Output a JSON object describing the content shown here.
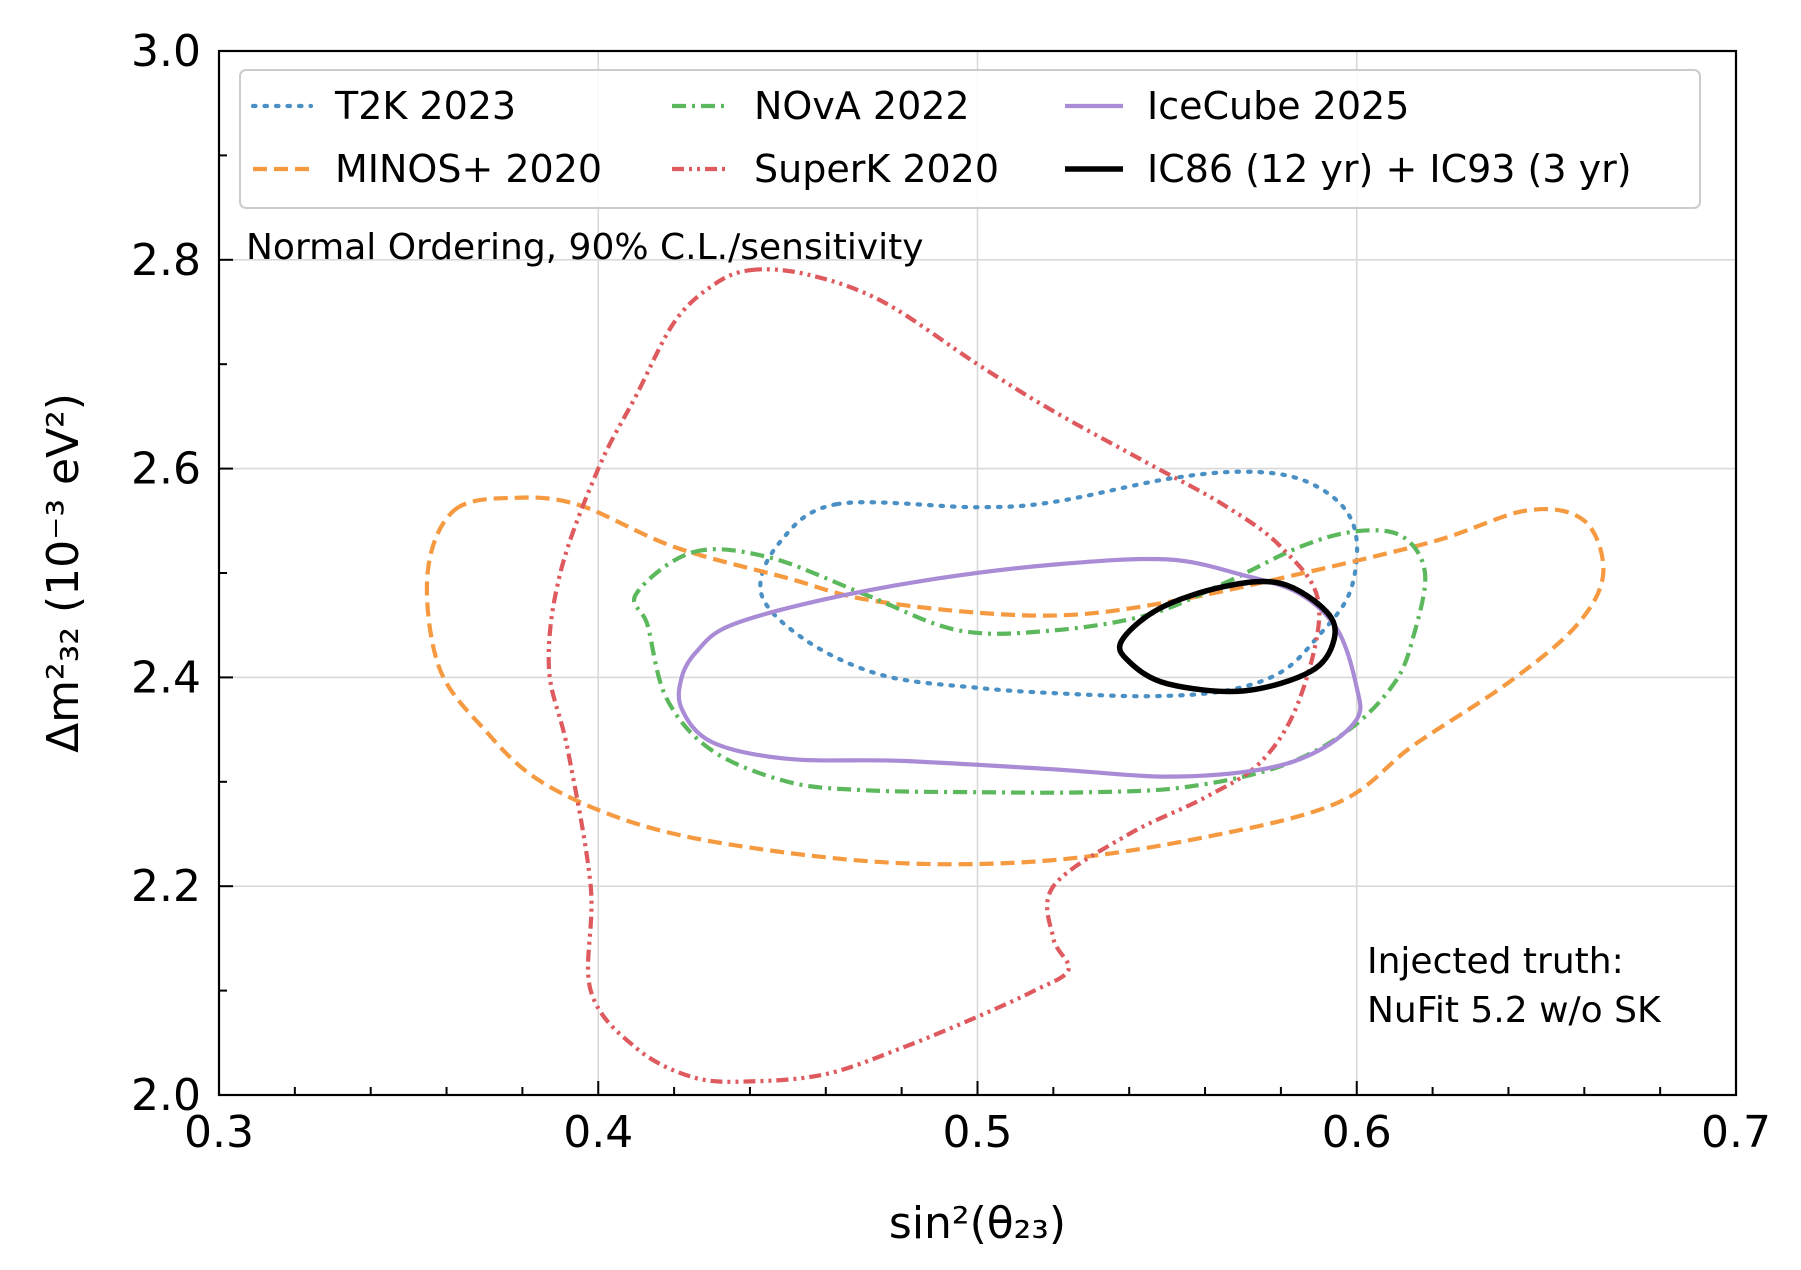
{
  "chart_data": {
    "type": "line",
    "title": "",
    "xlabel": "sin²(θ₂₃)",
    "ylabel": "Δm²₃₂ (10⁻³ eV²)",
    "xlim": [
      0.3,
      0.7
    ],
    "ylim": [
      2.0,
      3.0
    ],
    "x_ticks": [
      0.3,
      0.4,
      0.5,
      0.6,
      0.7
    ],
    "x_tick_labels": [
      "0.3",
      "0.4",
      "0.5",
      "0.6",
      "0.7"
    ],
    "y_ticks": [
      2.0,
      2.2,
      2.4,
      2.6,
      2.8,
      3.0
    ],
    "y_tick_labels": [
      "2.0",
      "2.2",
      "2.4",
      "2.6",
      "2.8",
      "3.0"
    ],
    "grid": true,
    "legend_location": "top",
    "annotations": [
      {
        "id": "ordering",
        "text": "Normal Ordering, 90% C.L./sensitivity",
        "position": "upper-left"
      },
      {
        "id": "truth",
        "lines": [
          "Injected truth:",
          "NuFit 5.2 w/o SK"
        ],
        "position": "lower-right"
      }
    ],
    "series": [
      {
        "id": "t2k",
        "name": "T2K 2023",
        "color": "#4a90c4",
        "dash": "dotted",
        "closed": true,
        "points": [
          [
            0.463,
            2.566
          ],
          [
            0.5,
            2.563
          ],
          [
            0.52,
            2.568
          ],
          [
            0.55,
            2.59
          ],
          [
            0.57,
            2.597
          ],
          [
            0.585,
            2.59
          ],
          [
            0.596,
            2.565
          ],
          [
            0.6,
            2.53
          ],
          [
            0.598,
            2.48
          ],
          [
            0.59,
            2.44
          ],
          [
            0.58,
            2.405
          ],
          [
            0.565,
            2.387
          ],
          [
            0.545,
            2.382
          ],
          [
            0.52,
            2.385
          ],
          [
            0.5,
            2.39
          ],
          [
            0.475,
            2.402
          ],
          [
            0.455,
            2.435
          ],
          [
            0.443,
            2.48
          ],
          [
            0.448,
            2.53
          ]
        ]
      },
      {
        "id": "minos",
        "name": "MINOS+ 2020",
        "color": "#f59a40",
        "dash": "dashed",
        "closed": true,
        "points": [
          [
            0.362,
            2.56
          ],
          [
            0.378,
            2.572
          ],
          [
            0.395,
            2.565
          ],
          [
            0.42,
            2.525
          ],
          [
            0.45,
            2.495
          ],
          [
            0.47,
            2.475
          ],
          [
            0.5,
            2.462
          ],
          [
            0.525,
            2.46
          ],
          [
            0.55,
            2.472
          ],
          [
            0.58,
            2.495
          ],
          [
            0.62,
            2.53
          ],
          [
            0.645,
            2.56
          ],
          [
            0.66,
            2.55
          ],
          [
            0.665,
            2.5
          ],
          [
            0.658,
            2.45
          ],
          [
            0.64,
            2.395
          ],
          [
            0.615,
            2.335
          ],
          [
            0.595,
            2.28
          ],
          [
            0.56,
            2.247
          ],
          [
            0.52,
            2.225
          ],
          [
            0.48,
            2.222
          ],
          [
            0.44,
            2.237
          ],
          [
            0.41,
            2.26
          ],
          [
            0.385,
            2.3
          ],
          [
            0.37,
            2.35
          ],
          [
            0.358,
            2.41
          ],
          [
            0.355,
            2.5
          ]
        ]
      },
      {
        "id": "nova",
        "name": "NOvA 2022",
        "color": "#5cb85c",
        "dash": "dashdot",
        "closed": true,
        "points": [
          [
            0.425,
            2.52
          ],
          [
            0.445,
            2.515
          ],
          [
            0.47,
            2.48
          ],
          [
            0.495,
            2.445
          ],
          [
            0.52,
            2.445
          ],
          [
            0.545,
            2.46
          ],
          [
            0.565,
            2.49
          ],
          [
            0.585,
            2.525
          ],
          [
            0.6,
            2.54
          ],
          [
            0.612,
            2.535
          ],
          [
            0.618,
            2.5
          ],
          [
            0.615,
            2.44
          ],
          [
            0.61,
            2.395
          ],
          [
            0.598,
            2.35
          ],
          [
            0.58,
            2.315
          ],
          [
            0.555,
            2.295
          ],
          [
            0.53,
            2.29
          ],
          [
            0.5,
            2.29
          ],
          [
            0.47,
            2.292
          ],
          [
            0.45,
            2.3
          ],
          [
            0.43,
            2.33
          ],
          [
            0.418,
            2.38
          ],
          [
            0.413,
            2.45
          ],
          [
            0.41,
            2.48
          ]
        ]
      },
      {
        "id": "superk",
        "name": "SuperK 2020",
        "color": "#de5a5e",
        "dash": "dashdotdot",
        "closed": true,
        "points": [
          [
            0.44,
            2.79
          ],
          [
            0.455,
            2.786
          ],
          [
            0.475,
            2.76
          ],
          [
            0.5,
            2.7
          ],
          [
            0.52,
            2.655
          ],
          [
            0.545,
            2.605
          ],
          [
            0.565,
            2.565
          ],
          [
            0.58,
            2.525
          ],
          [
            0.59,
            2.47
          ],
          [
            0.585,
            2.38
          ],
          [
            0.575,
            2.32
          ],
          [
            0.56,
            2.285
          ],
          [
            0.54,
            2.25
          ],
          [
            0.52,
            2.2
          ],
          [
            0.52,
            2.15
          ],
          [
            0.524,
            2.12
          ],
          [
            0.515,
            2.1
          ],
          [
            0.5,
            2.075
          ],
          [
            0.48,
            2.045
          ],
          [
            0.46,
            2.02
          ],
          [
            0.44,
            2.013
          ],
          [
            0.425,
            2.017
          ],
          [
            0.41,
            2.045
          ],
          [
            0.398,
            2.1
          ],
          [
            0.398,
            2.2
          ],
          [
            0.392,
            2.33
          ],
          [
            0.387,
            2.41
          ],
          [
            0.39,
            2.5
          ],
          [
            0.4,
            2.6
          ],
          [
            0.41,
            2.67
          ],
          [
            0.42,
            2.74
          ],
          [
            0.43,
            2.775
          ]
        ]
      },
      {
        "id": "icecube",
        "name": "IceCube 2025",
        "color": "#a98bd6",
        "dash": "solid",
        "closed": true,
        "points": [
          [
            0.435,
            2.45
          ],
          [
            0.46,
            2.475
          ],
          [
            0.49,
            2.495
          ],
          [
            0.52,
            2.508
          ],
          [
            0.55,
            2.513
          ],
          [
            0.57,
            2.498
          ],
          [
            0.585,
            2.48
          ],
          [
            0.595,
            2.445
          ],
          [
            0.6,
            2.39
          ],
          [
            0.6,
            2.36
          ],
          [
            0.59,
            2.33
          ],
          [
            0.575,
            2.312
          ],
          [
            0.55,
            2.305
          ],
          [
            0.52,
            2.312
          ],
          [
            0.48,
            2.32
          ],
          [
            0.45,
            2.322
          ],
          [
            0.43,
            2.338
          ],
          [
            0.422,
            2.37
          ],
          [
            0.422,
            2.4
          ],
          [
            0.426,
            2.425
          ]
        ]
      },
      {
        "id": "ic86",
        "name": "IC86 (12 yr) + IC93 (3 yr)",
        "color": "#000000",
        "dash": "solid",
        "closed": true,
        "points": [
          [
            0.538,
            2.435
          ],
          [
            0.548,
            2.466
          ],
          [
            0.565,
            2.487
          ],
          [
            0.58,
            2.49
          ],
          [
            0.592,
            2.463
          ],
          [
            0.594,
            2.436
          ],
          [
            0.588,
            2.406
          ],
          [
            0.57,
            2.387
          ],
          [
            0.55,
            2.394
          ],
          [
            0.54,
            2.415
          ]
        ]
      }
    ]
  }
}
